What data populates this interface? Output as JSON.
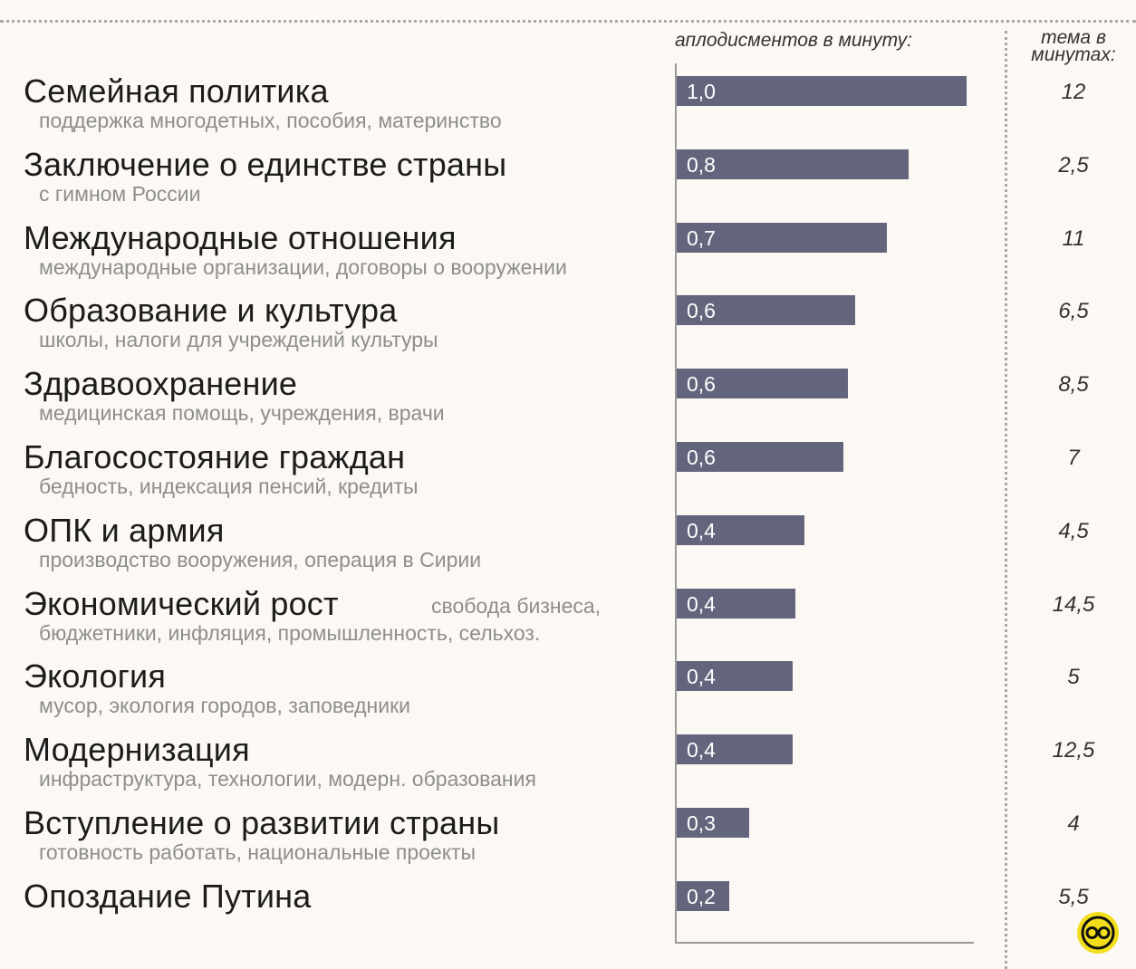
{
  "header": {
    "claps_label": "аплодисментов в минуту:",
    "time_label": "тема в\nминутах:"
  },
  "chart_data": {
    "type": "bar",
    "orientation": "horizontal",
    "xlim": [
      0,
      1.0
    ],
    "bar_color": "#63657d",
    "rows": [
      {
        "topic": "Семейная политика",
        "sub": "поддержка многодетных, пособия, материнство",
        "value": 1.0,
        "value_label": "1,0",
        "minutes_label": "12"
      },
      {
        "topic": "Заключение о единстве страны",
        "sub": "с гимном России",
        "value": 0.8,
        "value_label": "0,8",
        "minutes_label": "2,5"
      },
      {
        "topic": "Международные отношения",
        "sub": "международные организации, договоры о вооружении",
        "value": 0.725,
        "value_label": "0,7",
        "minutes_label": "11"
      },
      {
        "topic": "Образование и культура",
        "sub": "школы, налоги для учреждений культуры",
        "value": 0.615,
        "value_label": "0,6",
        "minutes_label": "6,5"
      },
      {
        "topic": "Здравоохранение",
        "sub": "медицинская помощь, учреждения, врачи",
        "value": 0.59,
        "value_label": "0,6",
        "minutes_label": "8,5"
      },
      {
        "topic": "Благосостояние граждан",
        "sub": "бедность, индексация пенсий, кредиты",
        "value": 0.575,
        "value_label": "0,6",
        "minutes_label": "7"
      },
      {
        "topic": "ОПК и армия",
        "sub": "производство вооружения, операция в Сирии",
        "value": 0.44,
        "value_label": "0,4",
        "minutes_label": "4,5"
      },
      {
        "topic": "Экономический рост",
        "sub_inline": "свобода бизнеса,",
        "sub": "бюджетники, инфляция, промышленность, сельхоз.",
        "value": 0.41,
        "value_label": "0,4",
        "minutes_label": "14,5"
      },
      {
        "topic": "Экология",
        "sub": "мусор, экология городов, заповедники",
        "value": 0.4,
        "value_label": "0,4",
        "minutes_label": "5"
      },
      {
        "topic": "Модернизация",
        "sub": "инфраструктура, технологии, модерн. образования",
        "value": 0.4,
        "value_label": "0,4",
        "minutes_label": "12,5"
      },
      {
        "topic": "Вступление о развитии страны",
        "sub": "готовность работать, национальные проекты",
        "value": 0.25,
        "value_label": "0,3",
        "minutes_label": "4"
      },
      {
        "topic": "Опоздание Путина",
        "sub": "",
        "value": 0.18,
        "value_label": "0,2",
        "minutes_label": "5,5"
      }
    ]
  },
  "logo": {
    "icon": "brand-logo-icon",
    "color": "#f2de1c"
  }
}
